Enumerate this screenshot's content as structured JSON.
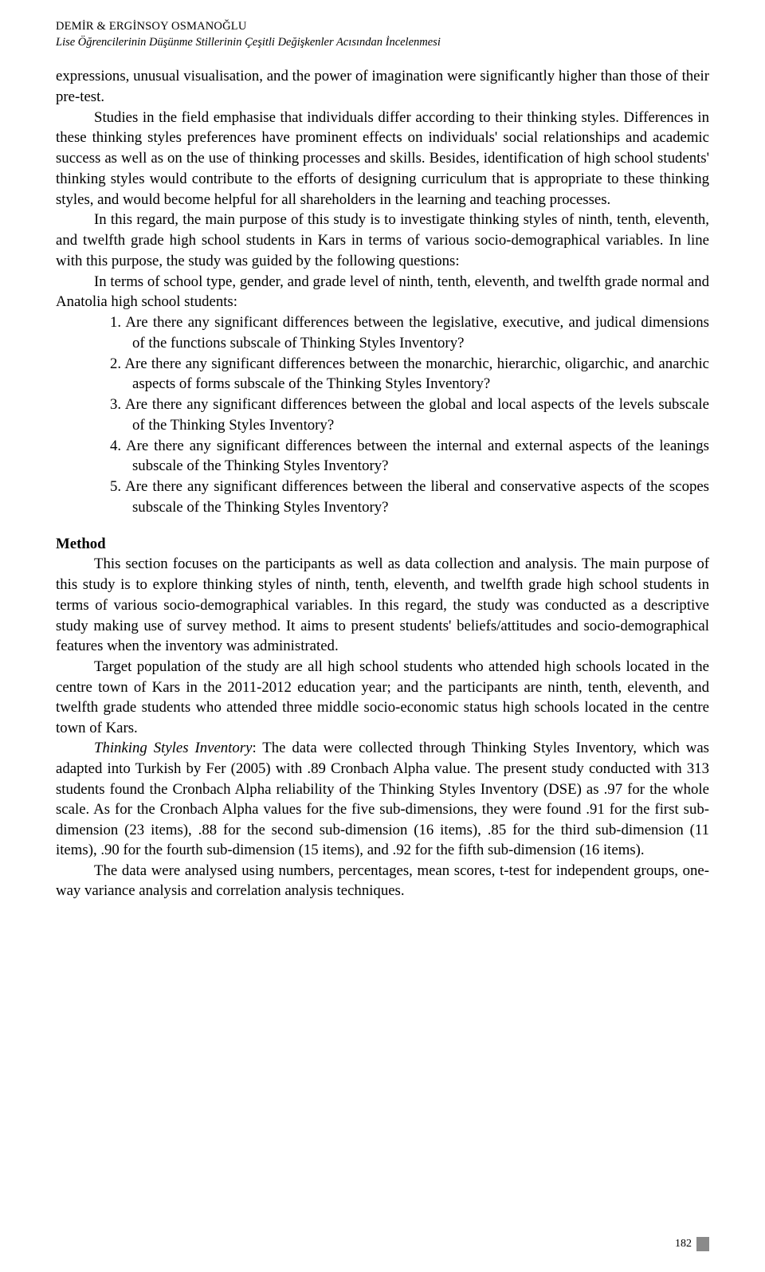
{
  "running_head": {
    "authors": "DEMİR & ERGİNSOY OSMANOĞLU",
    "subtitle": "Lise Öğrencilerinin Düşünme Stillerinin Çeşitli Değişkenler Acısından İncelenmesi"
  },
  "paragraphs": {
    "intro1": "expressions, unusual visualisation, and the power of imagination were significantly higher than those of their pre-test.",
    "intro2": "Studies in the field emphasise that individuals differ according to their thinking styles. Differences in these thinking styles preferences have prominent effects on individuals' social relationships and academic success as well as on the use of thinking processes and skills. Besides, identification of high school students' thinking styles would contribute to the efforts of designing curriculum that is appropriate to these thinking styles, and would become helpful for all shareholders in the learning and teaching processes.",
    "intro3": "In this regard, the main purpose of this study is to investigate thinking styles of ninth, tenth, eleventh, and twelfth grade high school students in Kars in terms of various socio-demographical variables. In line with this purpose, the study was guided by the following questions:",
    "intro4": "In terms of school type, gender, and grade level of ninth, tenth, eleventh, and twelfth grade normal and Anatolia high school students:"
  },
  "questions": [
    "1.  Are there any significant differences between the legislative, executive, and judical dimensions of the functions subscale of Thinking Styles Inventory?",
    "2.  Are there any significant differences between the monarchic, hierarchic, oligarchic, and anarchic aspects of forms subscale of the Thinking Styles Inventory?",
    "3.  Are there any significant differences between the global and local aspects of the levels subscale of the Thinking Styles Inventory?",
    "4.  Are there any significant differences between the internal and external aspects of the leanings subscale of the Thinking Styles Inventory?",
    "5.  Are there any significant differences between the liberal and conservative aspects of the scopes subscale of the Thinking Styles Inventory?"
  ],
  "method": {
    "heading": "Method",
    "p1": "This section focuses on the participants as well as data collection and analysis. The main purpose of this study is to explore thinking styles of ninth, tenth, eleventh, and twelfth grade high school students in terms of various socio-demographical variables. In this regard, the study was conducted as a descriptive study making use of survey method. It aims to present students' beliefs/attitudes and socio-demographical features when the inventory was administrated.",
    "p2": "Target population of the study are all high school students who attended high schools located in the centre town of Kars in the 2011-2012 education year; and the participants are ninth, tenth, eleventh, and twelfth grade students who attended three middle socio-economic status high schools located in the centre town of Kars.",
    "p3_lead": "Thinking Styles Inventory",
    "p3_rest": ": The data were collected through Thinking Styles Inventory, which was adapted into Turkish by Fer (2005) with .89 Cronbach Alpha value. The present study conducted with 313 students found the Cronbach Alpha reliability of the Thinking Styles Inventory (DSE) as .97 for the whole scale. As for the Cronbach Alpha values for the five sub-dimensions, they were found .91 for the first sub-dimension (23 items), .88 for the second sub-dimension (16 items), .85 for the third sub-dimension (11 items), .90 for the fourth sub-dimension (15 items), and .92 for the fifth sub-dimension (16 items).",
    "p4": "The data were analysed using numbers, percentages, mean scores, t-test for independent groups, one-way variance analysis and correlation analysis techniques."
  },
  "page_number": "182"
}
